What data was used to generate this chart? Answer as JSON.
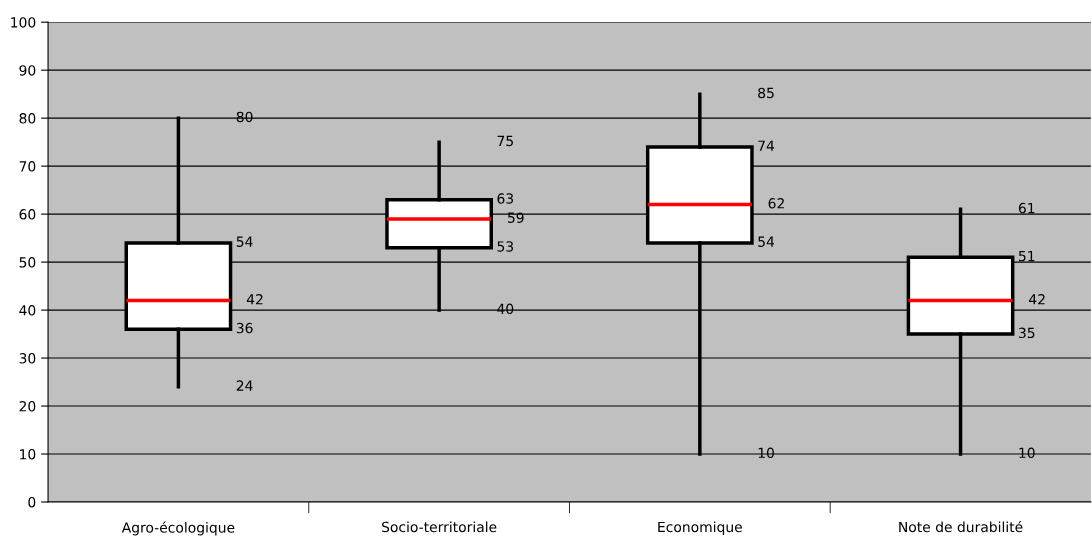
{
  "chart_data": {
    "type": "box",
    "categories": [
      "Agro-écologique",
      "Socio-territoriale",
      "Economique",
      "Note de durabilité"
    ],
    "boxes": [
      {
        "low": 24,
        "q1": 36,
        "median": 42,
        "q3": 54,
        "high": 80
      },
      {
        "low": 40,
        "q1": 53,
        "median": 59,
        "q3": 63,
        "high": 75
      },
      {
        "low": 10,
        "q1": 54,
        "median": 62,
        "q3": 74,
        "high": 85
      },
      {
        "low": 10,
        "q1": 35,
        "median": 42,
        "q3": 51,
        "high": 61
      }
    ],
    "color": "#ffffff",
    "ylim": [
      0,
      100
    ],
    "yticks": [
      0,
      10,
      20,
      30,
      40,
      50,
      60,
      70,
      80,
      90,
      100
    ],
    "grid": "y",
    "annotations": [
      "80",
      "54",
      "42",
      "36",
      "24",
      "75",
      "63",
      "59",
      "53",
      "40",
      "85",
      "74",
      "62",
      "54",
      "10",
      "61",
      "51",
      "42",
      "35",
      "10"
    ]
  }
}
